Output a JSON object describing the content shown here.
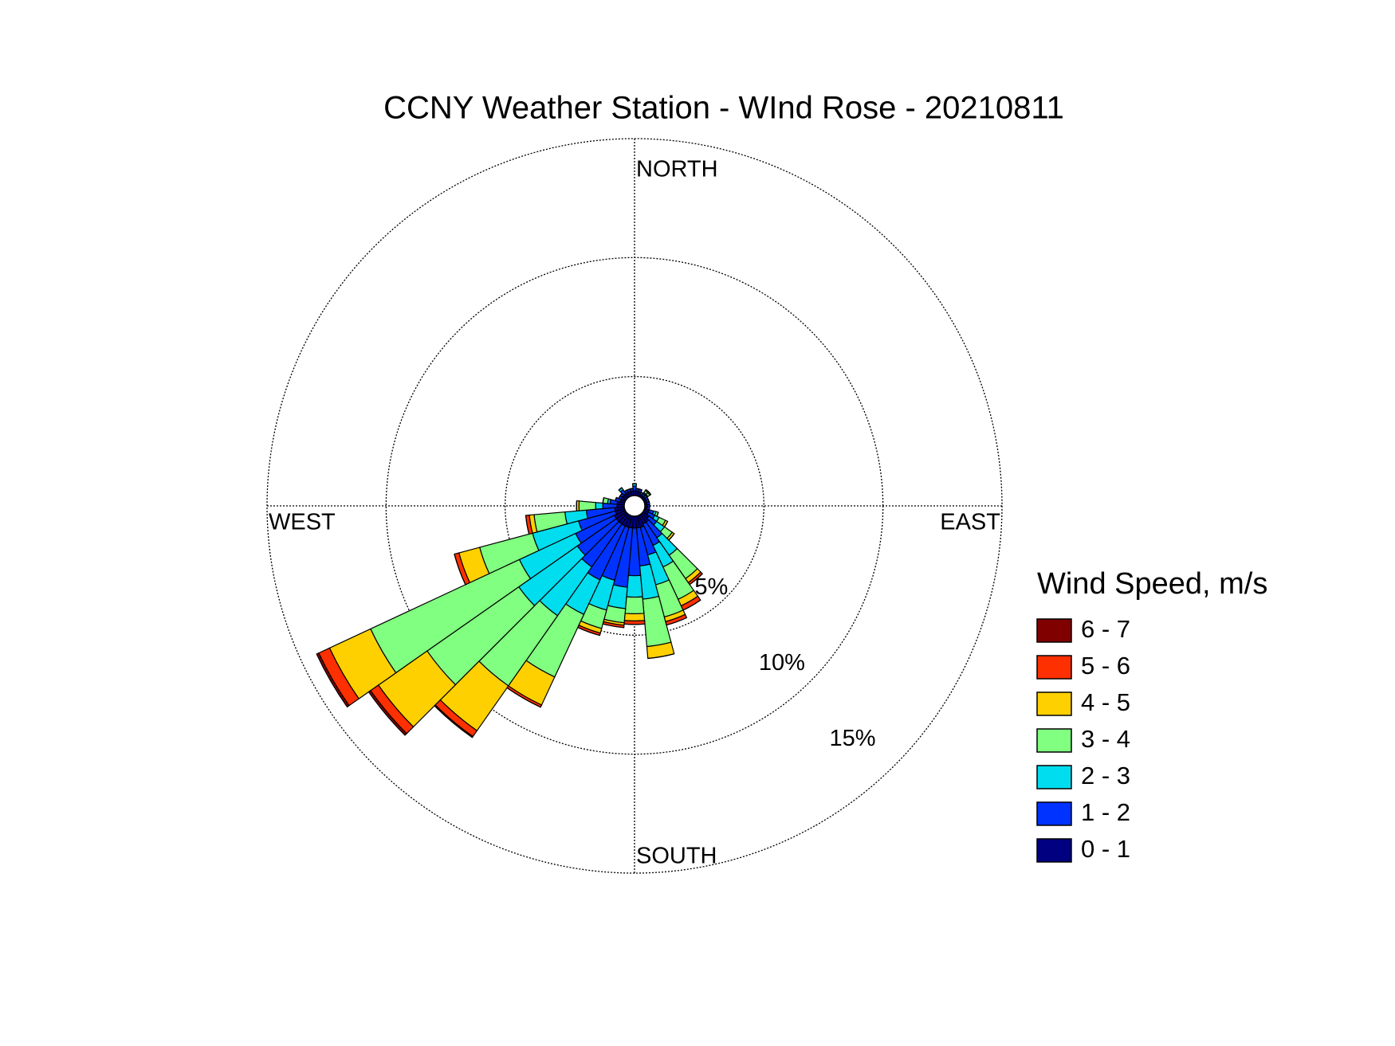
{
  "chart_data": {
    "type": "windrose",
    "title": "CCNY Weather Station - WInd Rose - 20210811",
    "direction_labels": [
      "NORTH",
      "EAST",
      "SOUTH",
      "WEST"
    ],
    "legend_title": "Wind Speed, m/s",
    "categories": [
      null,
      null,
      null,
      null,
      null,
      null,
      null,
      null,
      null,
      null,
      null,
      null,
      null,
      null,
      null,
      null,
      null,
      null,
      null,
      null,
      null,
      null,
      null,
      null,
      null,
      null,
      null,
      null,
      null,
      null,
      null,
      null,
      null,
      null,
      null,
      null
    ],
    "rlim": [
      0,
      15
    ],
    "rticks": [
      {
        "value": 5,
        "label": "5%"
      },
      {
        "value": 10,
        "label": "10%"
      },
      {
        "value": 15,
        "label": "15%"
      }
    ],
    "grid": true,
    "series": [
      {
        "name": "0 - 1",
        "color": "#000080",
        "values": [
          0.2,
          0.2,
          0.2,
          0.1,
          0.1,
          0.1,
          0.1,
          0.1,
          0.1,
          0.1,
          0.1,
          0.2,
          0.2,
          0.3,
          0.4,
          0.4,
          0.5,
          0.5,
          0.5,
          0.5,
          0.5,
          0.5,
          0.5,
          0.5,
          0.5,
          0.4,
          0.4,
          0.3,
          0.3,
          0.2,
          0.2,
          0.2,
          0.2,
          0.2,
          0.2,
          0.2
        ]
      },
      {
        "name": "1 - 2",
        "color": "#0033ff",
        "values": [
          0.2,
          0.1,
          0.1,
          0.1,
          0.1,
          0.1,
          0.1,
          0.1,
          0.1,
          0.1,
          0.1,
          0.2,
          0.3,
          0.4,
          0.8,
          1.0,
          1.2,
          1.6,
          2.0,
          2.5,
          2.3,
          2.5,
          2.2,
          2.0,
          1.8,
          1.6,
          1.2,
          0.6,
          0.3,
          0.2,
          0.1,
          0.1,
          0.2,
          0.1,
          0.1,
          0.1
        ]
      },
      {
        "name": "2 - 3",
        "color": "#00ddee",
        "values": [
          0.1,
          0,
          0,
          0,
          0.05,
          0.05,
          0,
          0,
          0,
          0,
          0,
          0.1,
          0.2,
          0.4,
          0.9,
          1.0,
          1.3,
          1.4,
          0.9,
          0.9,
          1.3,
          1.6,
          2.5,
          3.0,
          2.6,
          2.0,
          0.9,
          0.3,
          0.1,
          0,
          0,
          0,
          0.1,
          0,
          0,
          0
        ]
      },
      {
        "name": "3 - 4",
        "color": "#80ff80",
        "values": [
          0,
          0,
          0,
          0,
          0.1,
          0.1,
          0,
          0,
          0,
          0,
          0,
          0.1,
          0.3,
          0.4,
          1.2,
          1.5,
          1.4,
          2.0,
          0.7,
          0.6,
          0.8,
          2.9,
          3.6,
          4.7,
          6.9,
          2.3,
          1.3,
          0.7,
          0.2,
          0,
          0,
          0,
          0,
          0,
          0,
          0
        ]
      },
      {
        "name": "4 - 5",
        "color": "#ffd000",
        "values": [
          0,
          0,
          0,
          0,
          0.05,
          0.05,
          0,
          0,
          0,
          0,
          0,
          0,
          0.1,
          0.1,
          0.2,
          0.3,
          0.2,
          0.5,
          0.3,
          0.1,
          0.2,
          1.3,
          2.3,
          2.5,
          1.9,
          0.9,
          0.2,
          0.1,
          0,
          0,
          0,
          0,
          0,
          0,
          0,
          0
        ]
      },
      {
        "name": "5 - 6",
        "color": "#ff3000",
        "values": [
          0,
          0,
          0,
          0,
          0,
          0,
          0,
          0,
          0,
          0,
          0,
          0,
          0,
          0,
          0.1,
          0.2,
          0.15,
          0,
          0.15,
          0.1,
          0.1,
          0.1,
          0.3,
          0.4,
          0.5,
          0.2,
          0.15,
          0,
          0,
          0,
          0,
          0,
          0,
          0,
          0,
          0
        ]
      },
      {
        "name": "6 - 7",
        "color": "#800000",
        "values": [
          0,
          0,
          0,
          0,
          0,
          0,
          0,
          0,
          0,
          0,
          0,
          0,
          0,
          0,
          0,
          0,
          0,
          0,
          0,
          0,
          0,
          0,
          0.05,
          0.1,
          0.1,
          0,
          0,
          0,
          0,
          0,
          0,
          0,
          0,
          0,
          0,
          0
        ]
      }
    ]
  }
}
